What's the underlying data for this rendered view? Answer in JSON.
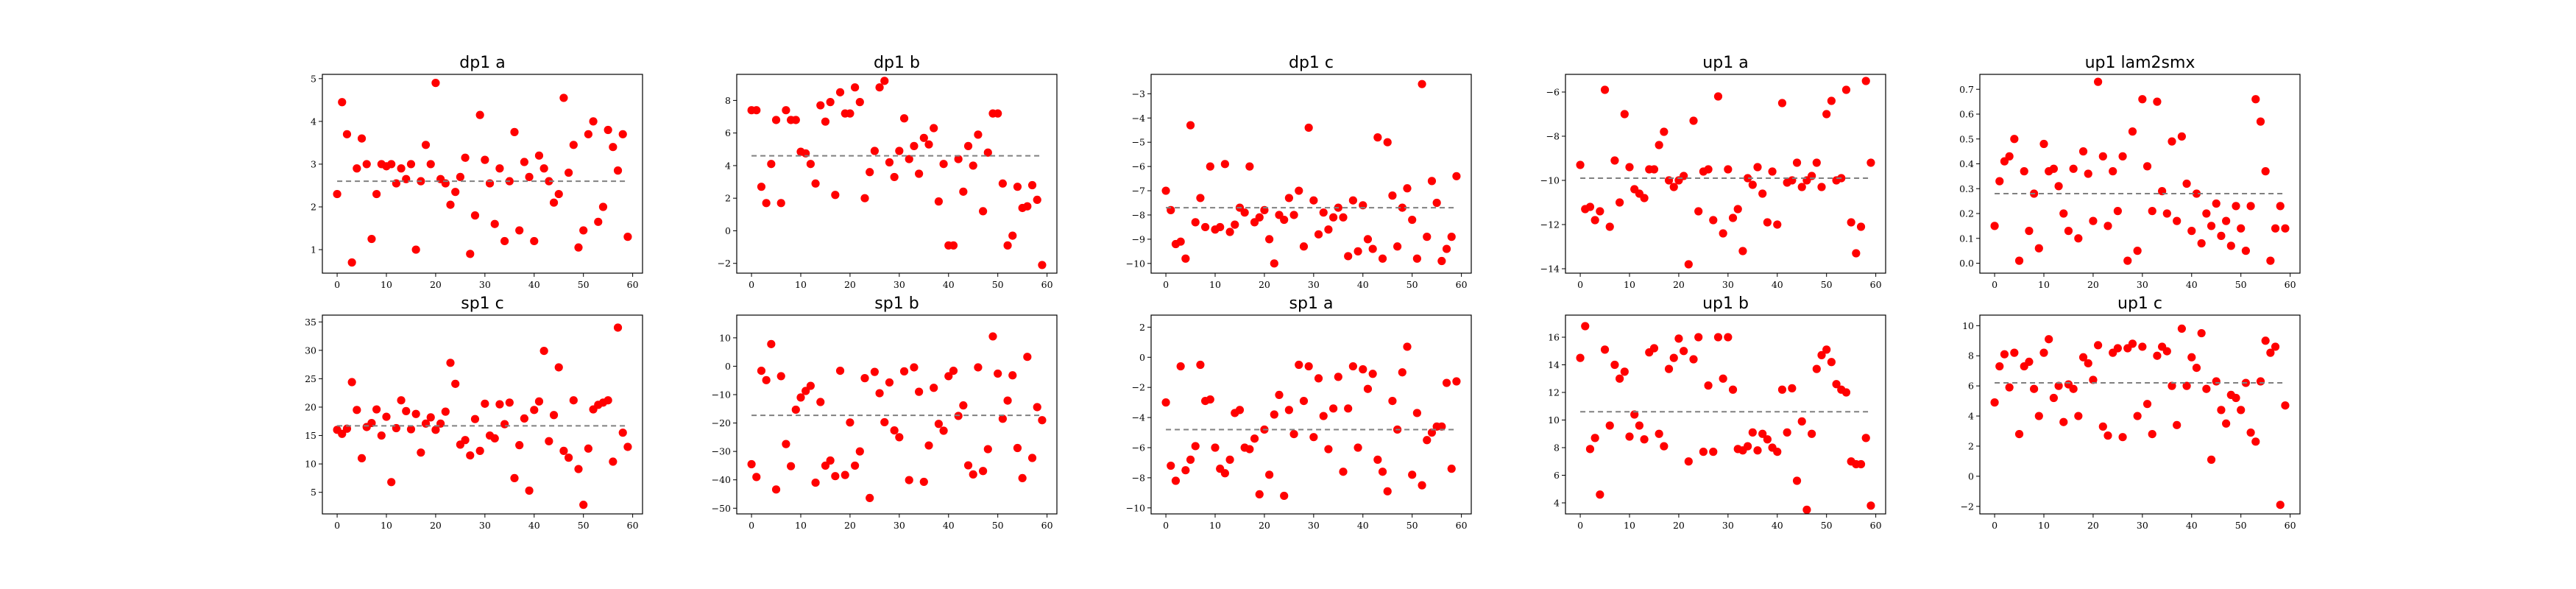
{
  "chart_data": [
    {
      "type": "scatter",
      "title": "dp1 a",
      "xlim": [
        -3,
        62
      ],
      "ylim": [
        0.45,
        5.1
      ],
      "xticks": [
        0,
        10,
        20,
        30,
        40,
        50,
        60
      ],
      "yticks": [
        1,
        2,
        3,
        4,
        5
      ],
      "xtick_labels": [
        "0",
        "10",
        "20",
        "30",
        "40",
        "50",
        "60"
      ],
      "ytick_labels": [
        "1",
        "2",
        "3",
        "4",
        "5"
      ],
      "mean": 2.6,
      "point_color": "#ff0000",
      "mean_line_color": "#808080",
      "mean_line_style": "dashed",
      "y": [
        2.3,
        4.45,
        3.7,
        0.7,
        2.9,
        3.6,
        3.0,
        1.25,
        2.3,
        3.0,
        2.95,
        3.0,
        2.55,
        2.9,
        2.65,
        3.0,
        1.0,
        2.6,
        3.45,
        3.0,
        4.9,
        2.65,
        2.55,
        2.05,
        2.35,
        2.7,
        3.15,
        0.9,
        1.8,
        4.15,
        3.1,
        2.55,
        1.6,
        2.9,
        1.2,
        2.6,
        3.75,
        1.45,
        3.05,
        2.7,
        1.2,
        3.2,
        2.9,
        2.6,
        2.1,
        2.3,
        4.55,
        2.8,
        3.45,
        1.05,
        1.45,
        3.7,
        4.0,
        1.65,
        2.0,
        3.8,
        3.4,
        2.85,
        3.7,
        1.3
      ]
    },
    {
      "type": "scatter",
      "title": "dp1 b",
      "xlim": [
        -3,
        62
      ],
      "ylim": [
        -2.6,
        9.6
      ],
      "xticks": [
        0,
        10,
        20,
        30,
        40,
        50,
        60
      ],
      "yticks": [
        -2,
        0,
        2,
        4,
        6,
        8
      ],
      "xtick_labels": [
        "0",
        "10",
        "20",
        "30",
        "40",
        "50",
        "60"
      ],
      "ytick_labels": [
        "−2",
        "0",
        "2",
        "4",
        "6",
        "8"
      ],
      "mean": 4.6,
      "point_color": "#ff0000",
      "mean_line_color": "#808080",
      "mean_line_style": "dashed",
      "y": [
        7.4,
        7.4,
        2.7,
        1.7,
        4.1,
        6.8,
        1.7,
        7.4,
        6.8,
        6.8,
        4.85,
        4.75,
        4.1,
        2.9,
        7.7,
        6.7,
        7.9,
        2.2,
        8.5,
        7.2,
        7.2,
        8.8,
        7.9,
        2.0,
        3.6,
        4.9,
        8.8,
        9.2,
        4.2,
        3.3,
        4.9,
        6.9,
        4.4,
        5.2,
        3.5,
        5.7,
        5.3,
        6.3,
        1.8,
        4.1,
        -0.9,
        -0.9,
        4.4,
        2.4,
        5.2,
        4.0,
        5.9,
        1.2,
        4.8,
        7.2,
        7.2,
        2.9,
        -0.9,
        -0.3,
        2.7,
        1.4,
        1.5,
        2.8,
        1.9,
        -2.1
      ]
    },
    {
      "type": "scatter",
      "title": "dp1 c",
      "xlim": [
        -3,
        62
      ],
      "ylim": [
        -10.4,
        -2.2
      ],
      "xticks": [
        0,
        10,
        20,
        30,
        40,
        50,
        60
      ],
      "yticks": [
        -10,
        -9,
        -8,
        -7,
        -6,
        -5,
        -4,
        -3
      ],
      "xtick_labels": [
        "0",
        "10",
        "20",
        "30",
        "40",
        "50",
        "60"
      ],
      "ytick_labels": [
        "−10",
        "−9",
        "−8",
        "−7",
        "−6",
        "−5",
        "−4",
        "−3"
      ],
      "mean": -7.7,
      "point_color": "#ff0000",
      "mean_line_color": "#808080",
      "mean_line_style": "dashed",
      "y": [
        -7.0,
        -7.8,
        -9.2,
        -9.1,
        -9.8,
        -4.3,
        -8.3,
        -7.3,
        -8.5,
        -6.0,
        -8.6,
        -8.5,
        -5.9,
        -8.7,
        -8.4,
        -7.7,
        -7.9,
        -6.0,
        -8.3,
        -8.1,
        -7.8,
        -9.0,
        -10.0,
        -8.0,
        -8.2,
        -7.3,
        -8.0,
        -7.0,
        -9.3,
        -4.4,
        -7.4,
        -8.8,
        -7.9,
        -8.6,
        -8.1,
        -7.7,
        -8.1,
        -9.7,
        -7.4,
        -9.5,
        -7.6,
        -9.0,
        -9.4,
        -4.8,
        -9.8,
        -5.0,
        -7.2,
        -9.3,
        -7.7,
        -6.9,
        -8.2,
        -9.8,
        -2.6,
        -8.9,
        -6.6,
        -7.5,
        -9.9,
        -9.4,
        -8.9,
        -6.4
      ]
    },
    {
      "type": "scatter",
      "title": "up1 a",
      "xlim": [
        -3,
        62
      ],
      "ylim": [
        -14.2,
        -5.2
      ],
      "xticks": [
        0,
        10,
        20,
        30,
        40,
        50,
        60
      ],
      "yticks": [
        -14,
        -12,
        -10,
        -8,
        -6
      ],
      "xtick_labels": [
        "0",
        "10",
        "20",
        "30",
        "40",
        "50",
        "60"
      ],
      "ytick_labels": [
        "−14",
        "−12",
        "−10",
        "−8",
        "−6"
      ],
      "mean": -9.9,
      "point_color": "#ff0000",
      "mean_line_color": "#808080",
      "mean_line_style": "dashed",
      "y": [
        -9.3,
        -11.3,
        -11.2,
        -11.8,
        -11.4,
        -5.9,
        -12.1,
        -9.1,
        -11.0,
        -7.0,
        -9.4,
        -10.4,
        -10.6,
        -10.8,
        -9.5,
        -9.5,
        -8.4,
        -7.8,
        -10.0,
        -10.3,
        -10.0,
        -9.8,
        -13.8,
        -7.3,
        -11.4,
        -9.6,
        -9.5,
        -11.8,
        -6.2,
        -12.4,
        -9.5,
        -11.7,
        -11.3,
        -13.2,
        -9.9,
        -10.2,
        -9.4,
        -10.6,
        -11.9,
        -9.6,
        -12.0,
        -6.5,
        -10.1,
        -10.0,
        -9.2,
        -10.3,
        -10.0,
        -9.8,
        -9.2,
        -10.3,
        -7.0,
        -6.4,
        -10.0,
        -9.9,
        -5.9,
        -11.9,
        -13.3,
        -12.1,
        -5.5,
        -9.2
      ]
    },
    {
      "type": "scatter",
      "title": "up1 lam2smx",
      "xlim": [
        -3,
        62
      ],
      "ylim": [
        -0.04,
        0.76
      ],
      "xticks": [
        0,
        10,
        20,
        30,
        40,
        50,
        60
      ],
      "yticks": [
        0.0,
        0.1,
        0.2,
        0.3,
        0.4,
        0.5,
        0.6,
        0.7
      ],
      "xtick_labels": [
        "0",
        "10",
        "20",
        "30",
        "40",
        "50",
        "60"
      ],
      "ytick_labels": [
        "0.0",
        "0.1",
        "0.2",
        "0.3",
        "0.4",
        "0.5",
        "0.6",
        "0.7"
      ],
      "mean": 0.28,
      "point_color": "#ff0000",
      "mean_line_color": "#808080",
      "mean_line_style": "dashed",
      "y": [
        0.15,
        0.33,
        0.41,
        0.43,
        0.5,
        0.01,
        0.37,
        0.13,
        0.28,
        0.06,
        0.48,
        0.37,
        0.38,
        0.31,
        0.2,
        0.13,
        0.38,
        0.1,
        0.45,
        0.36,
        0.17,
        0.73,
        0.43,
        0.15,
        0.37,
        0.21,
        0.43,
        0.01,
        0.53,
        0.05,
        0.66,
        0.39,
        0.21,
        0.65,
        0.29,
        0.2,
        0.49,
        0.17,
        0.51,
        0.32,
        0.13,
        0.28,
        0.08,
        0.2,
        0.15,
        0.24,
        0.11,
        0.17,
        0.07,
        0.23,
        0.14,
        0.05,
        0.23,
        0.66,
        0.57,
        0.37,
        0.01,
        0.14,
        0.23,
        0.14
      ]
    },
    {
      "type": "scatter",
      "title": "sp1 c",
      "xlim": [
        -3,
        62
      ],
      "ylim": [
        1.2,
        36.2
      ],
      "xticks": [
        0,
        10,
        20,
        30,
        40,
        50,
        60
      ],
      "yticks": [
        5,
        10,
        15,
        20,
        25,
        30,
        35
      ],
      "xtick_labels": [
        "0",
        "10",
        "20",
        "30",
        "40",
        "50",
        "60"
      ],
      "ytick_labels": [
        "5",
        "10",
        "15",
        "20",
        "25",
        "30",
        "35"
      ],
      "mean": 16.7,
      "point_color": "#ff0000",
      "mean_line_color": "#808080",
      "mean_line_style": "dashed",
      "y": [
        16.0,
        15.3,
        16.2,
        24.4,
        19.5,
        11.0,
        16.5,
        17.2,
        19.6,
        15.0,
        18.3,
        6.8,
        16.3,
        21.2,
        19.3,
        16.1,
        18.8,
        12.0,
        17.1,
        18.2,
        16.0,
        17.1,
        19.2,
        27.8,
        24.1,
        13.4,
        14.2,
        11.5,
        17.9,
        12.3,
        20.6,
        15.0,
        14.5,
        20.5,
        17.0,
        20.8,
        7.5,
        13.3,
        18.0,
        5.3,
        19.5,
        21.0,
        29.9,
        14.0,
        18.6,
        27.0,
        12.3,
        11.1,
        21.2,
        9.1,
        2.8,
        12.7,
        19.6,
        20.4,
        20.8,
        21.2,
        10.4,
        34.0,
        15.5,
        13.0
      ]
    },
    {
      "type": "scatter",
      "title": "sp1 b",
      "xlim": [
        -3,
        62
      ],
      "ylim": [
        -52,
        18
      ],
      "xticks": [
        0,
        10,
        20,
        30,
        40,
        50,
        60
      ],
      "yticks": [
        -50,
        -40,
        -30,
        -20,
        -10,
        0,
        10
      ],
      "xtick_labels": [
        "0",
        "10",
        "20",
        "30",
        "40",
        "50",
        "60"
      ],
      "ytick_labels": [
        "−50",
        "−40",
        "−30",
        "−20",
        "−10",
        "0",
        "10"
      ],
      "mean": -17.3,
      "point_color": "#ff0000",
      "mean_line_color": "#808080",
      "mean_line_style": "dashed",
      "y": [
        -34.5,
        -39.0,
        -1.6,
        -4.9,
        7.8,
        -43.4,
        -3.5,
        -27.4,
        -35.2,
        -15.3,
        -11.0,
        -8.7,
        -6.9,
        -41.0,
        -12.6,
        -35.0,
        -33.2,
        -38.7,
        -1.6,
        -38.3,
        -19.8,
        -35.0,
        -30.0,
        -4.2,
        -46.4,
        -2.0,
        -9.5,
        -19.7,
        -5.7,
        -22.6,
        -25.0,
        -1.8,
        -40.1,
        -0.4,
        -9.0,
        -40.7,
        -27.9,
        -7.6,
        -20.3,
        -22.7,
        -3.5,
        -1.6,
        -17.5,
        -13.8,
        -34.9,
        -38.1,
        -0.4,
        -36.9,
        -29.2,
        10.5,
        -2.6,
        -18.5,
        -12.1,
        -3.2,
        -28.8,
        -39.4,
        3.3,
        -32.3,
        -14.4,
        -19.0
      ]
    },
    {
      "type": "scatter",
      "title": "sp1 a",
      "xlim": [
        -3,
        62
      ],
      "ylim": [
        -10.4,
        2.8
      ],
      "xticks": [
        0,
        10,
        20,
        30,
        40,
        50,
        60
      ],
      "yticks": [
        -10,
        -8,
        -6,
        -4,
        -2,
        0,
        2
      ],
      "xtick_labels": [
        "0",
        "10",
        "20",
        "30",
        "40",
        "50",
        "60"
      ],
      "ytick_labels": [
        "−10",
        "−8",
        "−6",
        "−4",
        "−2",
        "0",
        "2"
      ],
      "mean": -4.8,
      "point_color": "#ff0000",
      "mean_line_color": "#808080",
      "mean_line_style": "dashed",
      "y": [
        -3.0,
        -7.2,
        -8.2,
        -0.6,
        -7.5,
        -6.8,
        -5.9,
        -0.5,
        -2.9,
        -2.8,
        -6.0,
        -7.4,
        -7.7,
        -6.8,
        -3.7,
        -3.5,
        -6.0,
        -6.1,
        -5.4,
        -9.1,
        -4.8,
        -7.8,
        -3.8,
        -2.5,
        -9.2,
        -3.5,
        -5.1,
        -0.5,
        -2.9,
        -0.6,
        -5.3,
        -1.4,
        -3.9,
        -6.1,
        -3.4,
        -1.3,
        -7.6,
        -3.4,
        -0.6,
        -6.0,
        -0.8,
        -2.1,
        -1.1,
        -6.8,
        -7.6,
        -8.9,
        -2.9,
        -4.8,
        -1.0,
        0.7,
        -7.8,
        -3.7,
        -8.5,
        -5.5,
        -5.0,
        -4.6,
        -4.6,
        -1.7,
        -7.4,
        -1.6
      ]
    },
    {
      "type": "scatter",
      "title": "up1 b",
      "xlim": [
        -3,
        62
      ],
      "ylim": [
        3.2,
        17.6
      ],
      "xticks": [
        0,
        10,
        20,
        30,
        40,
        50,
        60
      ],
      "yticks": [
        4,
        6,
        8,
        10,
        12,
        14,
        16
      ],
      "xtick_labels": [
        "0",
        "10",
        "20",
        "30",
        "40",
        "50",
        "60"
      ],
      "ytick_labels": [
        "4",
        "6",
        "8",
        "10",
        "12",
        "14",
        "16"
      ],
      "mean": 10.6,
      "point_color": "#ff0000",
      "mean_line_color": "#808080",
      "mean_line_style": "dashed",
      "y": [
        14.5,
        16.8,
        7.9,
        8.7,
        4.6,
        15.1,
        9.6,
        14.0,
        13.0,
        13.5,
        8.8,
        10.4,
        9.6,
        8.6,
        14.9,
        15.2,
        9.0,
        8.1,
        13.7,
        14.5,
        15.9,
        15.0,
        7.0,
        14.4,
        16.0,
        7.7,
        12.5,
        7.7,
        16.0,
        13.0,
        16.0,
        12.2,
        7.9,
        7.8,
        8.1,
        9.1,
        7.8,
        9.0,
        8.6,
        8.0,
        7.7,
        12.2,
        9.1,
        12.3,
        5.6,
        9.9,
        3.5,
        9.0,
        13.7,
        14.7,
        15.1,
        14.2,
        12.6,
        12.2,
        12.0,
        7.0,
        6.8,
        6.8,
        8.7,
        3.8
      ]
    },
    {
      "type": "scatter",
      "title": "up1 c",
      "xlim": [
        -3,
        62
      ],
      "ylim": [
        -2.5,
        10.7
      ],
      "xticks": [
        0,
        10,
        20,
        30,
        40,
        50,
        60
      ],
      "yticks": [
        -2,
        0,
        2,
        4,
        6,
        8,
        10
      ],
      "xtick_labels": [
        "0",
        "10",
        "20",
        "30",
        "40",
        "50",
        "60"
      ],
      "ytick_labels": [
        "−2",
        "0",
        "2",
        "4",
        "6",
        "8",
        "10"
      ],
      "mean": 6.2,
      "point_color": "#ff0000",
      "mean_line_color": "#808080",
      "mean_line_style": "dashed",
      "y": [
        4.9,
        7.3,
        8.1,
        5.9,
        8.2,
        2.8,
        7.3,
        7.6,
        5.8,
        4.0,
        8.2,
        9.1,
        5.2,
        6.0,
        3.6,
        6.1,
        5.8,
        4.0,
        7.9,
        7.5,
        6.4,
        8.7,
        3.3,
        2.7,
        8.2,
        8.5,
        2.6,
        8.5,
        8.8,
        4.0,
        8.6,
        4.8,
        2.8,
        8.0,
        8.6,
        8.3,
        6.0,
        3.4,
        9.8,
        6.0,
        7.9,
        7.2,
        9.5,
        5.8,
        1.1,
        6.3,
        4.4,
        3.5,
        5.4,
        5.2,
        4.4,
        6.2,
        2.9,
        2.3,
        6.3,
        9.0,
        8.2,
        8.6,
        -1.9,
        4.7
      ]
    }
  ]
}
